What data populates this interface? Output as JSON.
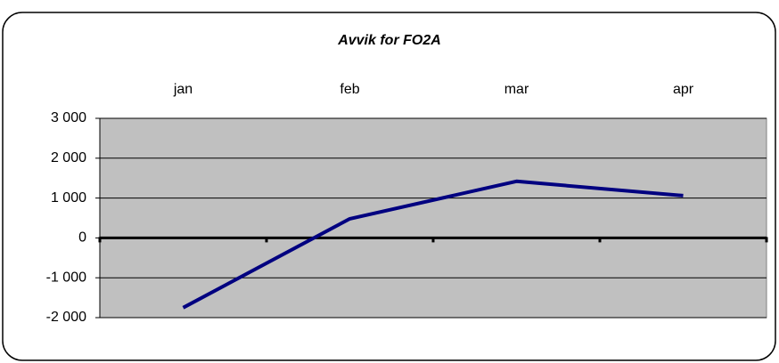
{
  "chart_data": {
    "type": "line",
    "title": "Avvik for FO2A",
    "categories": [
      "jan",
      "feb",
      "mar",
      "apr"
    ],
    "values": [
      -1750,
      480,
      1420,
      1060
    ],
    "color": "#000080",
    "ylim": [
      -2000,
      3000
    ],
    "yticks": [
      {
        "value": -2000,
        "label": "-2 000"
      },
      {
        "value": -1000,
        "label": "-1 000"
      },
      0,
      {
        "value": 1000,
        "label": "1 000"
      },
      {
        "value": 2000,
        "label": "2 000"
      },
      {
        "value": 3000,
        "label": "3 000"
      }
    ],
    "grid": true
  }
}
